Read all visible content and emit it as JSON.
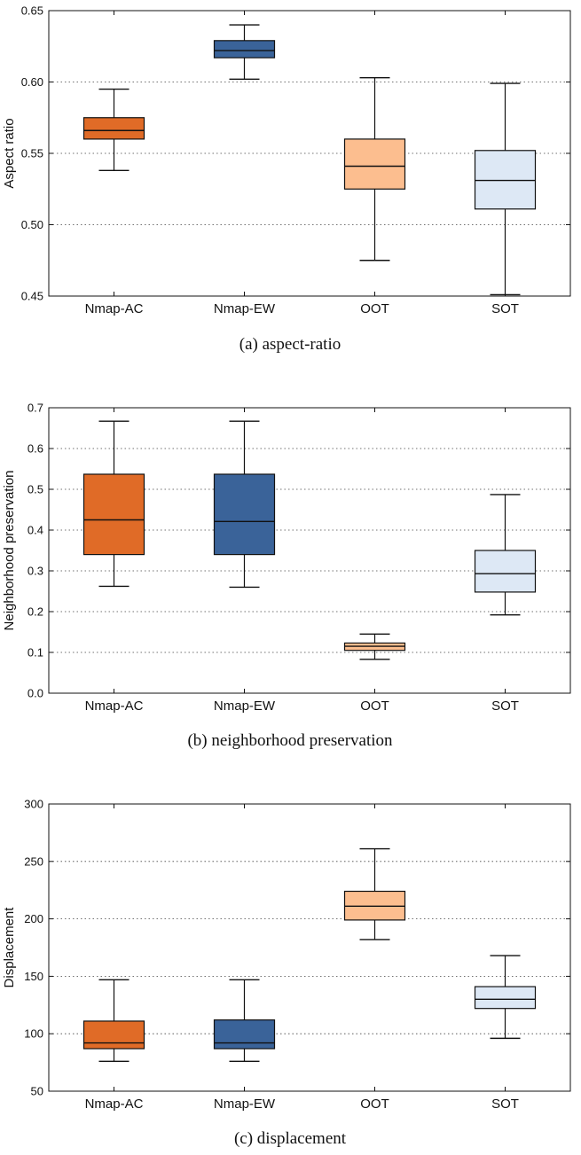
{
  "chart_data": [
    {
      "type": "box",
      "ylabel": "Aspect ratio",
      "caption": "(a)  aspect-ratio",
      "ylim": [
        0.45,
        0.65
      ],
      "yticks": [
        0.45,
        0.5,
        0.55,
        0.6,
        0.65
      ],
      "tick_decimals": 2,
      "grid": "horizontal dotted",
      "categories": [
        "Nmap-AC",
        "Nmap-EW",
        "OOT",
        "SOT"
      ],
      "colors": [
        "#e06b27",
        "#3a6399",
        "#fcbe8f",
        "#dde8f5"
      ],
      "boxes": [
        {
          "min": 0.538,
          "q1": 0.56,
          "median": 0.566,
          "q3": 0.575,
          "max": 0.595
        },
        {
          "min": 0.602,
          "q1": 0.617,
          "median": 0.622,
          "q3": 0.629,
          "max": 0.64
        },
        {
          "min": 0.475,
          "q1": 0.525,
          "median": 0.541,
          "q3": 0.56,
          "max": 0.603
        },
        {
          "min": 0.451,
          "q1": 0.511,
          "median": 0.531,
          "q3": 0.552,
          "max": 0.599
        }
      ]
    },
    {
      "type": "box",
      "ylabel": "Neighborhood preservation",
      "caption": "(b)  neighborhood preservation",
      "ylim": [
        0.0,
        0.7
      ],
      "yticks": [
        0.0,
        0.1,
        0.2,
        0.3,
        0.4,
        0.5,
        0.6,
        0.7
      ],
      "tick_decimals": 1,
      "grid": "horizontal dotted",
      "categories": [
        "Nmap-AC",
        "Nmap-EW",
        "OOT",
        "SOT"
      ],
      "colors": [
        "#e06b27",
        "#3a6399",
        "#fcbe8f",
        "#dde8f5"
      ],
      "boxes": [
        {
          "min": 0.262,
          "q1": 0.34,
          "median": 0.425,
          "q3": 0.537,
          "max": 0.667
        },
        {
          "min": 0.26,
          "q1": 0.34,
          "median": 0.421,
          "q3": 0.537,
          "max": 0.667
        },
        {
          "min": 0.083,
          "q1": 0.105,
          "median": 0.115,
          "q3": 0.123,
          "max": 0.145
        },
        {
          "min": 0.192,
          "q1": 0.248,
          "median": 0.293,
          "q3": 0.35,
          "max": 0.487
        }
      ]
    },
    {
      "type": "box",
      "ylabel": "Displacement",
      "caption": "(c)  displacement",
      "ylim": [
        50,
        300
      ],
      "yticks": [
        50,
        100,
        150,
        200,
        250,
        300
      ],
      "tick_decimals": 0,
      "grid": "horizontal dotted",
      "categories": [
        "Nmap-AC",
        "Nmap-EW",
        "OOT",
        "SOT"
      ],
      "colors": [
        "#e06b27",
        "#3a6399",
        "#fcbe8f",
        "#dde8f5"
      ],
      "boxes": [
        {
          "min": 76,
          "q1": 87,
          "median": 92,
          "q3": 111,
          "max": 147
        },
        {
          "min": 76,
          "q1": 87,
          "median": 92,
          "q3": 112,
          "max": 147
        },
        {
          "min": 182,
          "q1": 199,
          "median": 211,
          "q3": 224,
          "max": 261
        },
        {
          "min": 96,
          "q1": 122,
          "median": 130,
          "q3": 141,
          "max": 168
        }
      ]
    }
  ]
}
